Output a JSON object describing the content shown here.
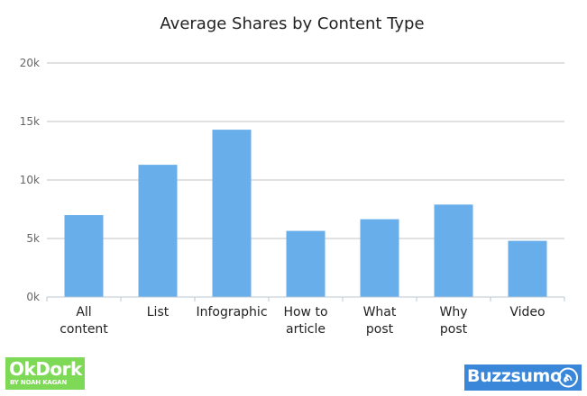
{
  "chart_data": {
    "type": "bar",
    "title": "Average Shares by Content Type",
    "categories": [
      [
        "All",
        "content"
      ],
      [
        "List"
      ],
      [
        "Infographic"
      ],
      [
        "How to",
        "article"
      ],
      [
        "What",
        "post"
      ],
      [
        "Why",
        "post"
      ],
      [
        "Video"
      ]
    ],
    "values": [
      7000,
      11300,
      14300,
      5650,
      6650,
      7900,
      4800
    ],
    "ylim": [
      0,
      20000
    ],
    "yticks": [
      0,
      5000,
      10000,
      15000,
      20000
    ],
    "ytick_labels": [
      "0k",
      "5k",
      "10k",
      "15k",
      "20k"
    ],
    "grid": true,
    "bar_color": "#67aeeb"
  },
  "logos": {
    "okdork_text": "OkDork",
    "okdork_sub": "BY NOAH KAGAN",
    "buzzsumo_text": "Buzzsumo"
  },
  "colors": {
    "okdork_bg": "#7ed957",
    "buzzsumo_bg": "#3a87d9"
  }
}
